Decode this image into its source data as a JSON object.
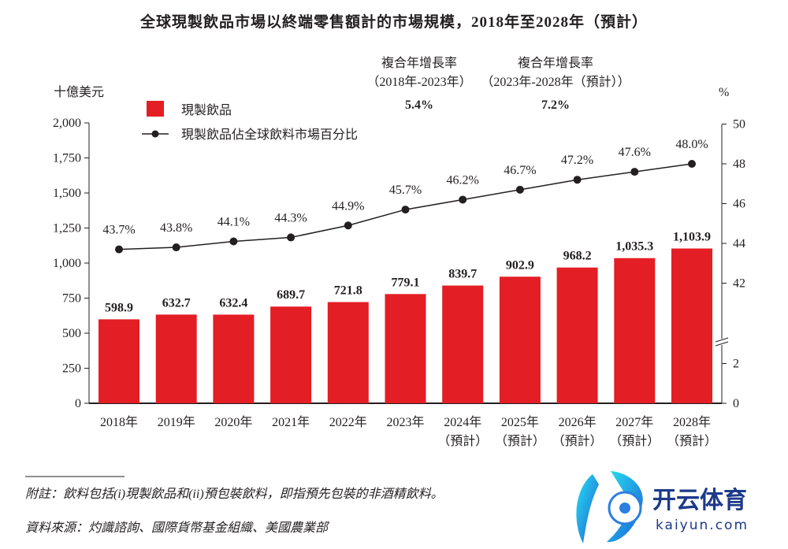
{
  "chart_data": {
    "type": "bar",
    "title": "全球現製飲品市場以終端零售額計的市場規模，2018年至2028年（預計）",
    "ylabel": "十億美元",
    "y2label": "%",
    "ylim": [
      0,
      2000
    ],
    "yticks": [
      "0",
      "250",
      "500",
      "750",
      "1,000",
      "1,250",
      "1,500",
      "1,750",
      "2,000"
    ],
    "y2lim": [
      0,
      50
    ],
    "y2_axis_break": true,
    "y2ticks": [
      "0",
      "2",
      "42",
      "44",
      "46",
      "48",
      "50"
    ],
    "grid": false,
    "legend_placement": "top-left",
    "categories": [
      [
        "2018年"
      ],
      [
        "2019年"
      ],
      [
        "2020年"
      ],
      [
        "2021年"
      ],
      [
        "2022年"
      ],
      [
        "2023年"
      ],
      [
        "2024年",
        "（預計）"
      ],
      [
        "2025年",
        "（預計）"
      ],
      [
        "2026年",
        "（預計）"
      ],
      [
        "2027年",
        "（預計）"
      ],
      [
        "2028年",
        "（預計）"
      ]
    ],
    "series": [
      {
        "name": "現製飲品",
        "type": "bar",
        "axis": "left",
        "color": "#E31E24",
        "values": [
          598.9,
          632.7,
          632.4,
          689.7,
          721.8,
          779.1,
          839.7,
          902.9,
          968.2,
          1035.3,
          1103.9
        ],
        "labels": [
          "598.9",
          "632.7",
          "632.4",
          "689.7",
          "721.8",
          "779.1",
          "839.7",
          "902.9",
          "968.2",
          "1,035.3",
          "1,103.9"
        ]
      },
      {
        "name": "現製飲品佔全球飲料市場百分比",
        "type": "line",
        "axis": "right",
        "color": "#231f20",
        "values": [
          43.7,
          43.8,
          44.1,
          44.3,
          44.9,
          45.7,
          46.2,
          46.7,
          47.2,
          47.6,
          48.0
        ],
        "labels": [
          "43.7%",
          "43.8%",
          "44.1%",
          "44.3%",
          "44.9%",
          "45.7%",
          "46.2%",
          "46.7%",
          "47.2%",
          "47.6%",
          "48.0%"
        ]
      }
    ],
    "annotations": [
      {
        "line1": "複合年增長率",
        "line2": "（2018年-2023年）",
        "value": "5.4%"
      },
      {
        "line1": "複合年增長率",
        "line2": "（2023年-2028年（預計））",
        "value": "7.2%"
      }
    ]
  },
  "footnote": {
    "note": "附註：飲料包括(i)現製飲品和(ii)預包裝飲料，即指預先包裝的非酒精飲料。",
    "source": "資料來源：灼識諮詢、國際貨幣基金組織、美國農業部"
  },
  "watermark": {
    "text_cn": "开云体育",
    "text_en": "kaiyun.com",
    "colors": [
      "#1fa2f5",
      "#1d3a8a"
    ]
  }
}
